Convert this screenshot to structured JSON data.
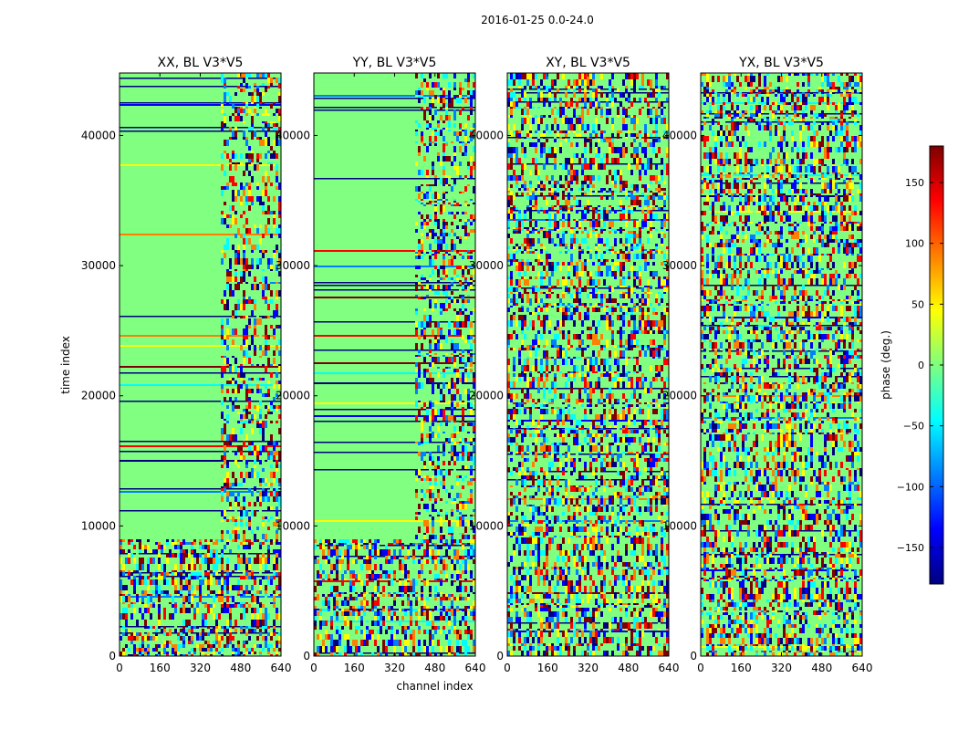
{
  "figure_title": "2016-01-25 0.0-24.0",
  "colors": {
    "jet": [
      "#00007f",
      "#0000ff",
      "#007fff",
      "#00ffff",
      "#7fff7f",
      "#ffff00",
      "#ff7f00",
      "#ff0000",
      "#7f0000"
    ],
    "background_field": "#80ff80"
  },
  "chart_data": [
    {
      "type": "heatmap",
      "title": "XX, BL V3*V5",
      "xlabel": "",
      "ylabel": "time index",
      "xticks": [
        0,
        160,
        320,
        480,
        640
      ],
      "xtick_labels": [
        "0",
        "160",
        "320",
        "480",
        "640"
      ],
      "yticks": [
        0,
        10000,
        20000,
        30000,
        40000
      ],
      "ytick_labels": [
        "0",
        "10000",
        "20000",
        "30000",
        "40000"
      ],
      "xlim": [
        0,
        640
      ],
      "ylim": [
        0,
        44800
      ],
      "value_range": [
        -180,
        180
      ],
      "noise_band_start_channel": 400,
      "low_time_noise_until": 9000,
      "noise_level": "low"
    },
    {
      "type": "heatmap",
      "title": "YY, BL V3*V5",
      "xlabel": "channel index",
      "ylabel": "",
      "xticks": [
        0,
        160,
        320,
        480,
        640
      ],
      "xtick_labels": [
        "0",
        "160",
        "320",
        "480",
        "640"
      ],
      "yticks": [
        0,
        10000,
        20000,
        30000,
        40000
      ],
      "ytick_labels": [
        "0",
        "10000",
        "20000",
        "30000",
        "40000"
      ],
      "xlim": [
        0,
        640
      ],
      "ylim": [
        0,
        44800
      ],
      "value_range": [
        -180,
        180
      ],
      "noise_band_start_channel": 400,
      "low_time_noise_until": 9000,
      "noise_level": "low"
    },
    {
      "type": "heatmap",
      "title": "XY, BL V3*V5",
      "xlabel": "",
      "ylabel": "",
      "xticks": [
        0,
        160,
        320,
        480,
        640
      ],
      "xtick_labels": [
        "0",
        "160",
        "320",
        "480",
        "640"
      ],
      "yticks": [
        0,
        10000,
        20000,
        30000,
        40000
      ],
      "ytick_labels": [
        "0",
        "10000",
        "20000",
        "30000",
        "40000"
      ],
      "xlim": [
        0,
        640
      ],
      "ylim": [
        0,
        44800
      ],
      "value_range": [
        -180,
        180
      ],
      "noise_band_start_channel": 0,
      "low_time_noise_until": 9000,
      "noise_level": "high"
    },
    {
      "type": "heatmap",
      "title": "YX, BL V3*V5",
      "xlabel": "",
      "ylabel": "",
      "xticks": [
        0,
        160,
        320,
        480,
        640
      ],
      "xtick_labels": [
        "0",
        "160",
        "320",
        "480",
        "640"
      ],
      "yticks": [
        0,
        10000,
        20000,
        30000,
        40000
      ],
      "ytick_labels": [
        "0",
        "10000",
        "20000",
        "30000",
        "40000"
      ],
      "xlim": [
        0,
        640
      ],
      "ylim": [
        0,
        44800
      ],
      "value_range": [
        -180,
        180
      ],
      "noise_band_start_channel": 0,
      "low_time_noise_until": 9000,
      "noise_level": "high"
    }
  ],
  "colorbar": {
    "label": "phase (deg.)",
    "ticks": [
      -150,
      -100,
      -50,
      0,
      50,
      100,
      150
    ],
    "tick_labels": [
      "−150",
      "−100",
      "−50",
      "0",
      "50",
      "100",
      "150"
    ],
    "range": [
      -180,
      180
    ],
    "colormap": "jet"
  }
}
